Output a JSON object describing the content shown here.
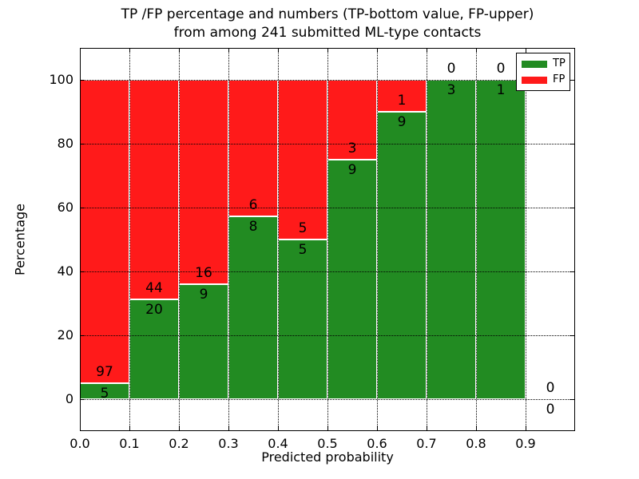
{
  "title": {
    "line1": "TP /FP percentage and numbers (TP-bottom value, FP-upper)",
    "line2": "from among 241 submitted ML-type contacts"
  },
  "axes": {
    "ylabel": "Percentage",
    "xlabel": "Predicted probability",
    "ytick_values": [
      0,
      20,
      40,
      60,
      80,
      100
    ],
    "ytick_labels": [
      "0",
      "20",
      "40",
      "60",
      "80",
      "100"
    ],
    "xtick_labels": [
      "0.0",
      "0.1",
      "0.2",
      "0.3",
      "0.4",
      "0.5",
      "0.6",
      "0.7",
      "0.8",
      "0.9"
    ],
    "xlim": [
      0.0,
      1.0
    ],
    "ylim": [
      -10,
      110
    ],
    "grid": true
  },
  "legend": {
    "position": "upper right",
    "items": [
      {
        "label": "TP",
        "color": "#228B22"
      },
      {
        "label": "FP",
        "color": "#FF1A1A"
      }
    ]
  },
  "chart_data": {
    "type": "bar",
    "stacked": true,
    "normalized_to_percent": true,
    "title": "TP /FP percentage and numbers (TP-bottom value, FP-upper) from among 241 submitted ML-type contacts",
    "xlabel": "Predicted probability",
    "ylabel": "Percentage",
    "total_contacts": 241,
    "bin_width": 0.1,
    "bins": [
      "0.0-0.1",
      "0.1-0.2",
      "0.2-0.3",
      "0.3-0.4",
      "0.4-0.5",
      "0.5-0.6",
      "0.6-0.7",
      "0.7-0.8",
      "0.8-0.9",
      "0.9-1.0"
    ],
    "series": [
      {
        "name": "TP",
        "color": "#228B22",
        "values": [
          5,
          20,
          9,
          8,
          5,
          9,
          9,
          3,
          1,
          0
        ]
      },
      {
        "name": "FP",
        "color": "#FF1A1A",
        "values": [
          97,
          44,
          16,
          6,
          5,
          3,
          1,
          0,
          0,
          0
        ]
      }
    ],
    "tp_percent": [
      4.9,
      31.25,
      36.0,
      57.1,
      50.0,
      75.0,
      90.0,
      100.0,
      100.0,
      null
    ],
    "xlim": [
      0.0,
      1.0
    ],
    "ylim": [
      -10,
      110
    ],
    "grid": true,
    "legend_position": "upper right"
  }
}
